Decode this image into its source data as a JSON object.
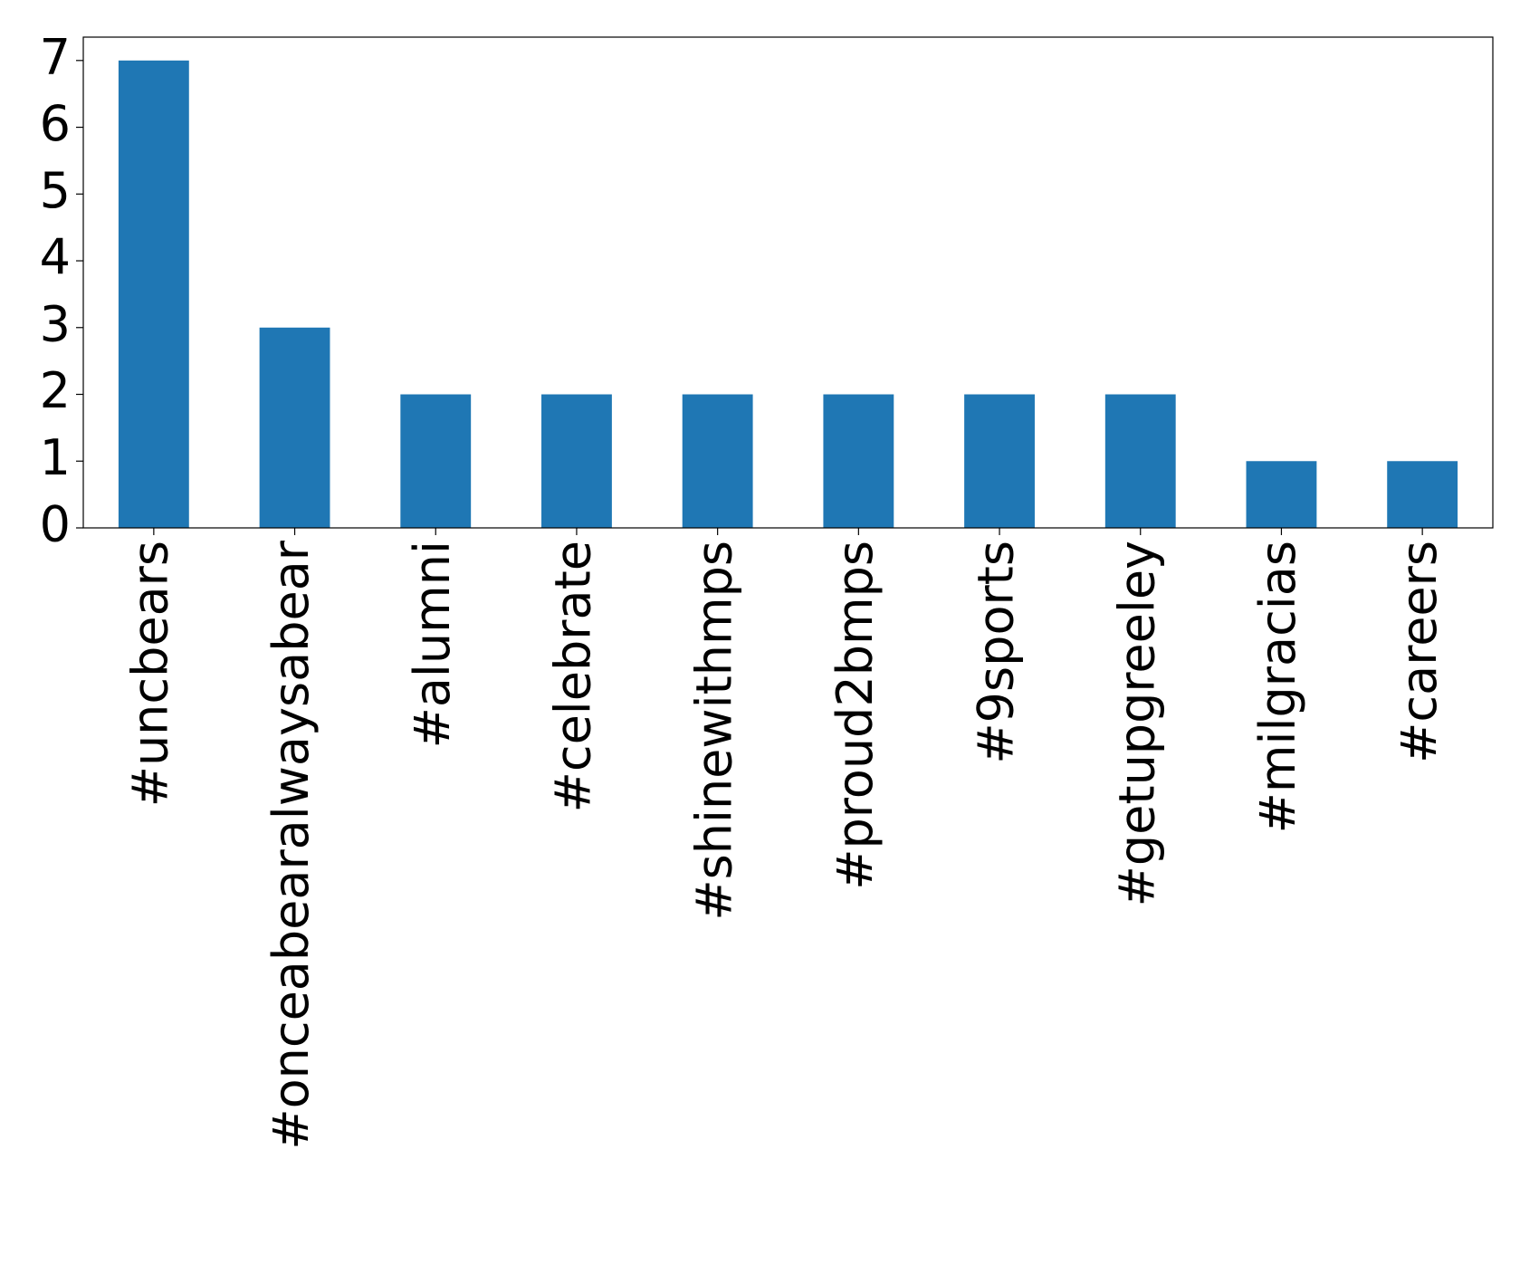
{
  "chart_data": {
    "type": "bar",
    "categories": [
      "#uncbears",
      "#onceabearalwaysabear",
      "#alumni",
      "#celebrate",
      "#shinewithmps",
      "#proud2bmps",
      "#9sports",
      "#getupgreeley",
      "#milgracias",
      "#careers"
    ],
    "values": [
      7,
      3,
      2,
      2,
      2,
      2,
      2,
      2,
      1,
      1
    ],
    "color": "#1f77b4",
    "ylim": [
      0,
      7.35
    ],
    "yticks": [
      0,
      1,
      2,
      3,
      4,
      5,
      6,
      7
    ],
    "grid": false
  }
}
